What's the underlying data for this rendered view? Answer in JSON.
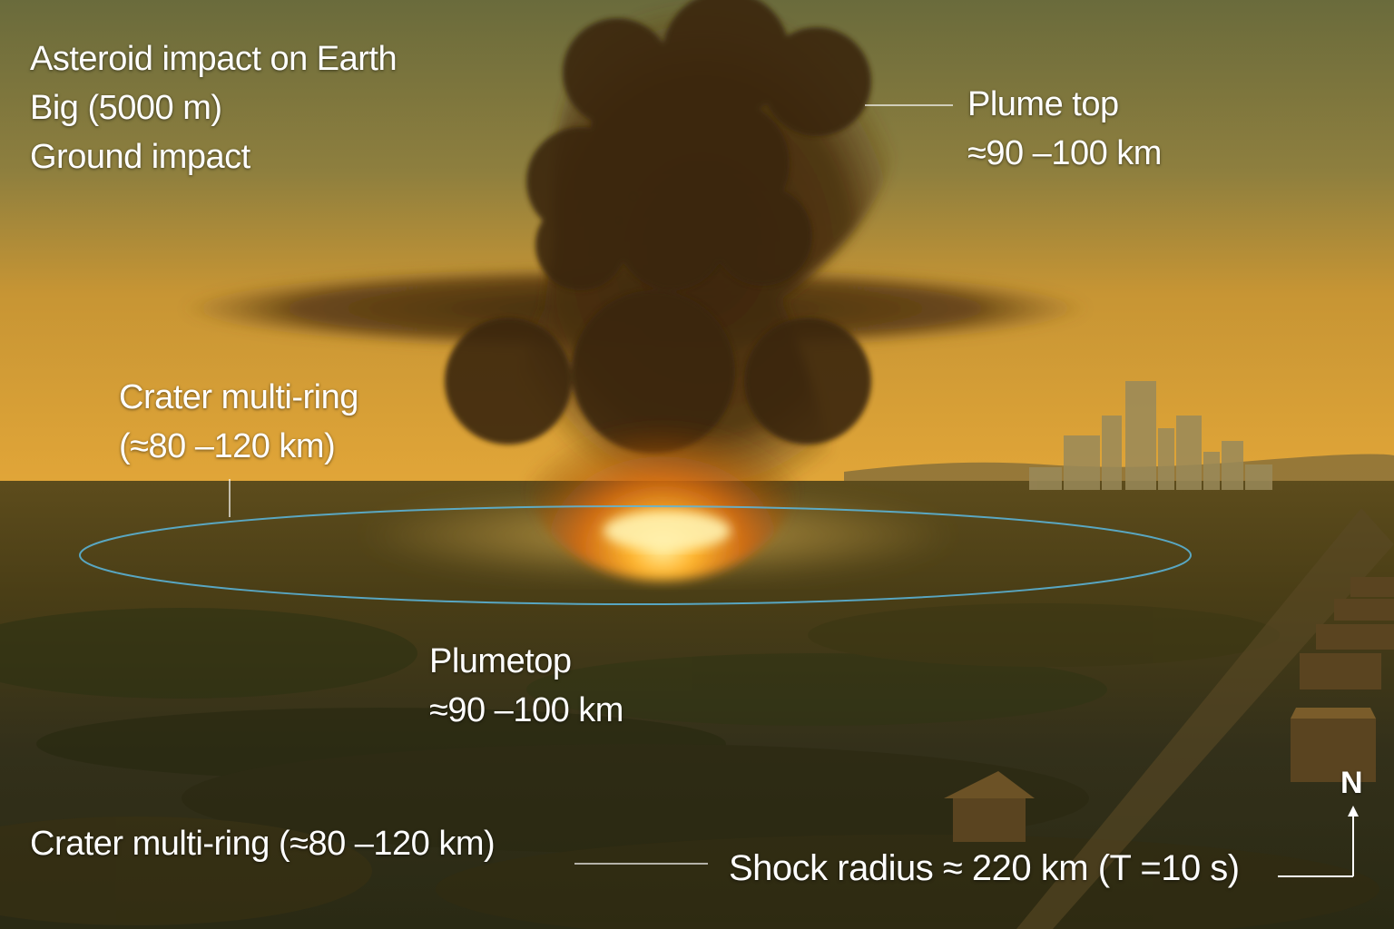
{
  "title_block": {
    "line1": "Asteroid impact on Earth",
    "line2": "Big (5000 m)",
    "line3": "Ground impact"
  },
  "plume_top_upper": {
    "label": "Plume top",
    "value": "≈90 –100 km"
  },
  "crater_upper": {
    "label": "Crater multi-ring",
    "value": "(≈80 –120 km)"
  },
  "plume_top_lower": {
    "label": "Plumetop",
    "value": "≈90 –100 km"
  },
  "crater_lower": {
    "label": "Crater multi-ring (≈80 –120 km)"
  },
  "shock_radius": {
    "label": "Shock radius ≈ 220 km (T =10 s)"
  },
  "compass": {
    "label": "N"
  },
  "colors": {
    "sky_top": "#6b6a3a",
    "sky_horizon": "#d99a2e",
    "ground": "#3a3110",
    "fireball": "#ffb030",
    "crater_ring": "#5ab8e0",
    "annotation_text": "#ffffff"
  }
}
